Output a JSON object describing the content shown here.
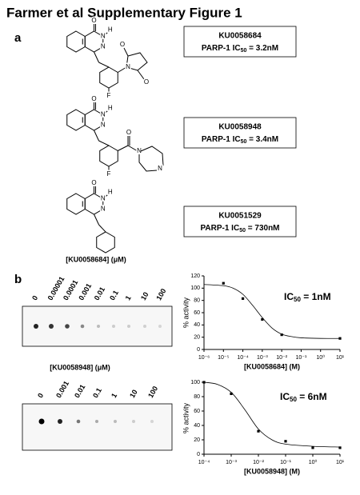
{
  "title": "Farmer et al Supplementary Figure 1",
  "panels": {
    "a": "a",
    "b": "b"
  },
  "compounds": [
    {
      "name": "KU0058684",
      "ic50": {
        "prefix": "PARP-1 IC",
        "subscript": "50",
        "suffix": " = 3.2nM"
      },
      "atoms": [
        "O",
        "N",
        "H",
        "N",
        "O",
        "N",
        "O",
        "F"
      ]
    },
    {
      "name": "KU0058948",
      "ic50": {
        "prefix": "PARP-1 IC",
        "subscript": "50",
        "suffix": " = 3.4nM"
      },
      "atoms": [
        "O",
        "N",
        "H",
        "N",
        "O",
        "N",
        "N",
        "F"
      ]
    },
    {
      "name": "KU0051529",
      "ic50": {
        "prefix": "PARP-1 IC",
        "subscript": "50",
        "suffix": " = 730nM"
      },
      "atoms": [
        "O",
        "N",
        "H",
        "N"
      ]
    }
  ],
  "blots": [
    {
      "label": "[KU0058684] (μM)",
      "concentrations": [
        "0",
        "0.00001",
        "0.0001",
        "0.001",
        "0.01",
        "0.1",
        "1",
        "10",
        "100"
      ]
    },
    {
      "label": "[KU0058948] (μM)",
      "concentrations": [
        "0",
        "0.001",
        "0.01",
        "0.1",
        "1",
        "10",
        "100"
      ]
    }
  ],
  "chart_data": [
    {
      "type": "scatter",
      "x_label": "[KU0058684] (M)",
      "y_label": "% activity",
      "annotation": {
        "prefix": "IC",
        "subscript": "50",
        "suffix": " = 1nM"
      },
      "x_log": true,
      "xlim": [
        1e-06,
        10
      ],
      "xticks": [
        {
          "value": 1e-06,
          "label": "10⁻⁶"
        },
        {
          "value": 1e-05,
          "label": "10⁻⁵"
        },
        {
          "value": 0.0001,
          "label": "10⁻⁴"
        },
        {
          "value": 0.001,
          "label": "10⁻³"
        },
        {
          "value": 0.01,
          "label": "10⁻²"
        },
        {
          "value": 0.1,
          "label": "10⁻¹"
        },
        {
          "value": 1,
          "label": "10⁰"
        },
        {
          "value": 10,
          "label": "10¹"
        }
      ],
      "ylim": [
        0,
        120
      ],
      "yticks": [
        0,
        20,
        40,
        60,
        80,
        100,
        120
      ],
      "x": [
        1e-05,
        0.0001,
        0.001,
        0.01,
        10
      ],
      "values": [
        108,
        83,
        49,
        24,
        18
      ],
      "color": "#000000",
      "fit": {
        "x": [
          1e-06,
          1e-05,
          3.16e-05,
          0.0001,
          0.000316,
          0.001,
          0.00316,
          0.01,
          0.0316,
          0.1,
          1,
          10
        ],
        "values": [
          106,
          104,
          100,
          90,
          72,
          52,
          35,
          25,
          21,
          19,
          18,
          18
        ]
      }
    },
    {
      "type": "scatter",
      "x_label": "[KU0058948] (M)",
      "y_label": "% activity",
      "annotation": {
        "prefix": "IC",
        "subscript": "50",
        "suffix": " = 6nM"
      },
      "x_log": true,
      "xlim": [
        0.0001,
        10
      ],
      "xticks": [
        {
          "value": 0.0001,
          "label": "10⁻⁴"
        },
        {
          "value": 0.001,
          "label": "10⁻³"
        },
        {
          "value": 0.01,
          "label": "10⁻²"
        },
        {
          "value": 0.1,
          "label": "10⁻¹"
        },
        {
          "value": 1,
          "label": "10⁰"
        },
        {
          "value": 10,
          "label": "10¹"
        }
      ],
      "ylim": [
        0,
        100
      ],
      "yticks": [
        0,
        20,
        40,
        60,
        80,
        100
      ],
      "x": [
        0.0001,
        0.001,
        0.01,
        0.1,
        1,
        10
      ],
      "values": [
        100,
        84,
        32,
        18,
        9,
        9
      ],
      "color": "#000000",
      "fit": {
        "x": [
          0.0001,
          0.000316,
          0.001,
          0.00316,
          0.01,
          0.0316,
          0.1,
          1,
          10
        ],
        "values": [
          100,
          97,
          86,
          62,
          35,
          20,
          14,
          11,
          10
        ]
      }
    }
  ]
}
